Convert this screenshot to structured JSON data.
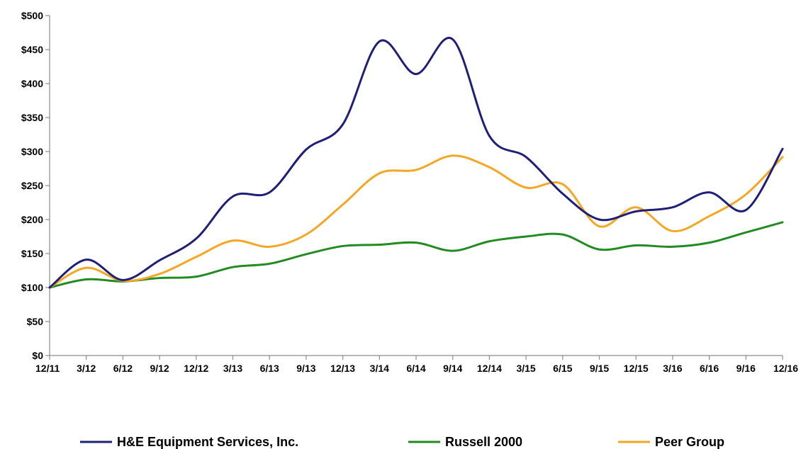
{
  "chart_data": {
    "type": "line",
    "title": "",
    "xlabel": "",
    "ylabel": "",
    "ylim": [
      0,
      500
    ],
    "yticks": [
      0,
      50,
      100,
      150,
      200,
      250,
      300,
      350,
      400,
      450,
      500
    ],
    "ytick_labels": [
      "$0",
      "$50",
      "$100",
      "$150",
      "$200",
      "$250",
      "$300",
      "$350",
      "$400",
      "$450",
      "$500"
    ],
    "categories": [
      "12/11",
      "3/12",
      "6/12",
      "9/12",
      "12/12",
      "3/13",
      "6/13",
      "9/13",
      "12/13",
      "3/14",
      "6/14",
      "9/14",
      "12/14",
      "3/15",
      "6/15",
      "9/15",
      "12/15",
      "3/16",
      "6/16",
      "9/16",
      "12/16"
    ],
    "grid": false,
    "legend_position": "bottom",
    "series": [
      {
        "name": "H&E Equipment Services, Inc.",
        "color": "#1f1f7a",
        "values": [
          100,
          141,
          111,
          140,
          172,
          234,
          240,
          303,
          340,
          462,
          414,
          465,
          323,
          292,
          238,
          200,
          212,
          218,
          240,
          214,
          304
        ]
      },
      {
        "name": "Russell 2000",
        "color": "#228b22",
        "values": [
          100,
          112,
          109,
          114,
          116,
          130,
          135,
          149,
          161,
          163,
          166,
          154,
          168,
          175,
          178,
          156,
          162,
          160,
          166,
          181,
          196
        ]
      },
      {
        "name": "Peer Group",
        "color": "#f5a623",
        "values": [
          100,
          129,
          110,
          120,
          145,
          169,
          160,
          178,
          222,
          268,
          273,
          294,
          277,
          247,
          252,
          190,
          218,
          183,
          205,
          237,
          292
        ]
      }
    ]
  }
}
